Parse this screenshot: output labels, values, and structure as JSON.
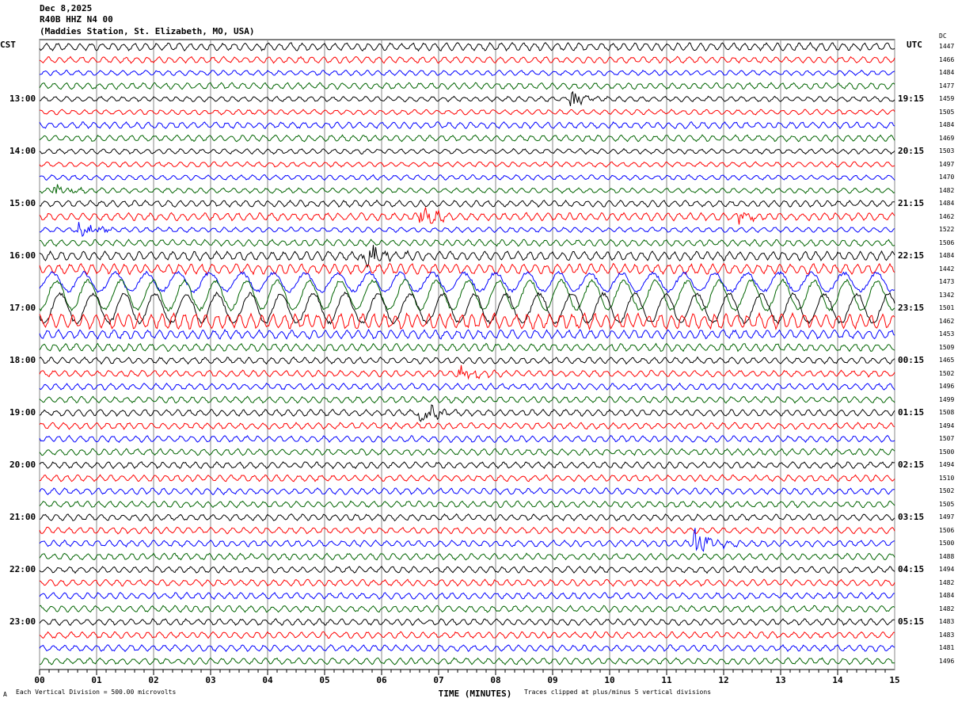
{
  "header": {
    "date": "Dec 8,2025",
    "channel": "R40B HHZ N4 00",
    "station": "(Maddies Station, St. Elizabeth, MO, USA)"
  },
  "left_tz": "CST",
  "right_tz": "UTC",
  "dc_label": "DC",
  "chart_data": {
    "type": "line",
    "title": "R40B HHZ N4 00 helicorder",
    "xlabel": "TIME (MINUTES)",
    "xlim": [
      0,
      15
    ],
    "x_ticks": [
      "00",
      "01",
      "02",
      "03",
      "04",
      "05",
      "06",
      "07",
      "08",
      "09",
      "10",
      "11",
      "12",
      "13",
      "14",
      "15"
    ],
    "trace_minutes": 15,
    "trace_colors": [
      "#000000",
      "#ff0000",
      "#0000ff",
      "#006400"
    ],
    "left_labels": [
      {
        "trace": 4,
        "text": "13:00"
      },
      {
        "trace": 8,
        "text": "14:00"
      },
      {
        "trace": 12,
        "text": "15:00"
      },
      {
        "trace": 16,
        "text": "16:00"
      },
      {
        "trace": 20,
        "text": "17:00"
      },
      {
        "trace": 24,
        "text": "18:00"
      },
      {
        "trace": 28,
        "text": "19:00"
      },
      {
        "trace": 32,
        "text": "20:00"
      },
      {
        "trace": 36,
        "text": "21:00"
      },
      {
        "trace": 40,
        "text": "22:00"
      },
      {
        "trace": 44,
        "text": "23:00"
      }
    ],
    "right_labels": [
      {
        "trace": 4,
        "text": "19:15"
      },
      {
        "trace": 8,
        "text": "20:15"
      },
      {
        "trace": 12,
        "text": "21:15"
      },
      {
        "trace": 16,
        "text": "22:15"
      },
      {
        "trace": 20,
        "text": "23:15"
      },
      {
        "trace": 24,
        "text": "00:15"
      },
      {
        "trace": 28,
        "text": "01:15"
      },
      {
        "trace": 32,
        "text": "02:15"
      },
      {
        "trace": 36,
        "text": "03:15"
      },
      {
        "trace": 40,
        "text": "04:15"
      },
      {
        "trace": 44,
        "text": "05:15"
      }
    ],
    "dc_offsets": [
      "1447",
      "1466",
      "1484",
      "1477",
      "1459",
      "1505",
      "1484",
      "1469",
      "1503",
      "1497",
      "1470",
      "1482",
      "1484",
      "1462",
      "1522",
      "1506",
      "1484",
      "1442",
      "1473",
      "1342",
      "1501",
      "1462",
      "1453",
      "1509",
      "1465",
      "1502",
      "1496",
      "1499",
      "1508",
      "1494",
      "1507",
      "1500",
      "1494",
      "1510",
      "1502",
      "1505",
      "1497",
      "1506",
      "1500",
      "1488",
      "1494",
      "1482",
      "1484",
      "1482",
      "1483",
      "1483",
      "1481",
      "1496"
    ],
    "background_amplitude_divs": [
      0.6,
      0.5,
      0.4,
      0.5,
      0.4,
      0.4,
      0.5,
      0.5,
      0.4,
      0.4,
      0.4,
      0.4,
      0.5,
      0.6,
      0.4,
      0.5,
      0.7,
      0.8,
      1.4,
      2.2,
      2.2,
      1.2,
      0.7,
      0.6,
      0.5,
      0.5,
      0.5,
      0.5,
      0.5,
      0.5,
      0.5,
      0.5,
      0.5,
      0.5,
      0.5,
      0.5,
      0.5,
      0.5,
      0.5,
      0.5,
      0.5,
      0.5,
      0.5,
      0.5,
      0.5,
      0.5,
      0.5,
      0.5
    ],
    "events": [
      {
        "trace": 4,
        "minute": 9.35,
        "amplitude_divs": 1.2
      },
      {
        "trace": 11,
        "minute": 0.3,
        "amplitude_divs": 0.8
      },
      {
        "trace": 13,
        "minute": 6.7,
        "amplitude_divs": 1.5
      },
      {
        "trace": 13,
        "minute": 12.3,
        "amplitude_divs": 1.0
      },
      {
        "trace": 14,
        "minute": 0.7,
        "amplitude_divs": 1.5
      },
      {
        "trace": 16,
        "minute": 5.7,
        "amplitude_divs": 2.0
      },
      {
        "trace": 25,
        "minute": 7.4,
        "amplitude_divs": 1.2
      },
      {
        "trace": 28,
        "minute": 6.7,
        "amplitude_divs": 2.0
      },
      {
        "trace": 38,
        "minute": 11.5,
        "amplitude_divs": 2.5
      }
    ]
  },
  "footer": {
    "scale": "Each Vertical Division =  500.00 microvolts",
    "clip": "Traces clipped at plus/minus 5 vertical divisions",
    "mark": "A"
  }
}
